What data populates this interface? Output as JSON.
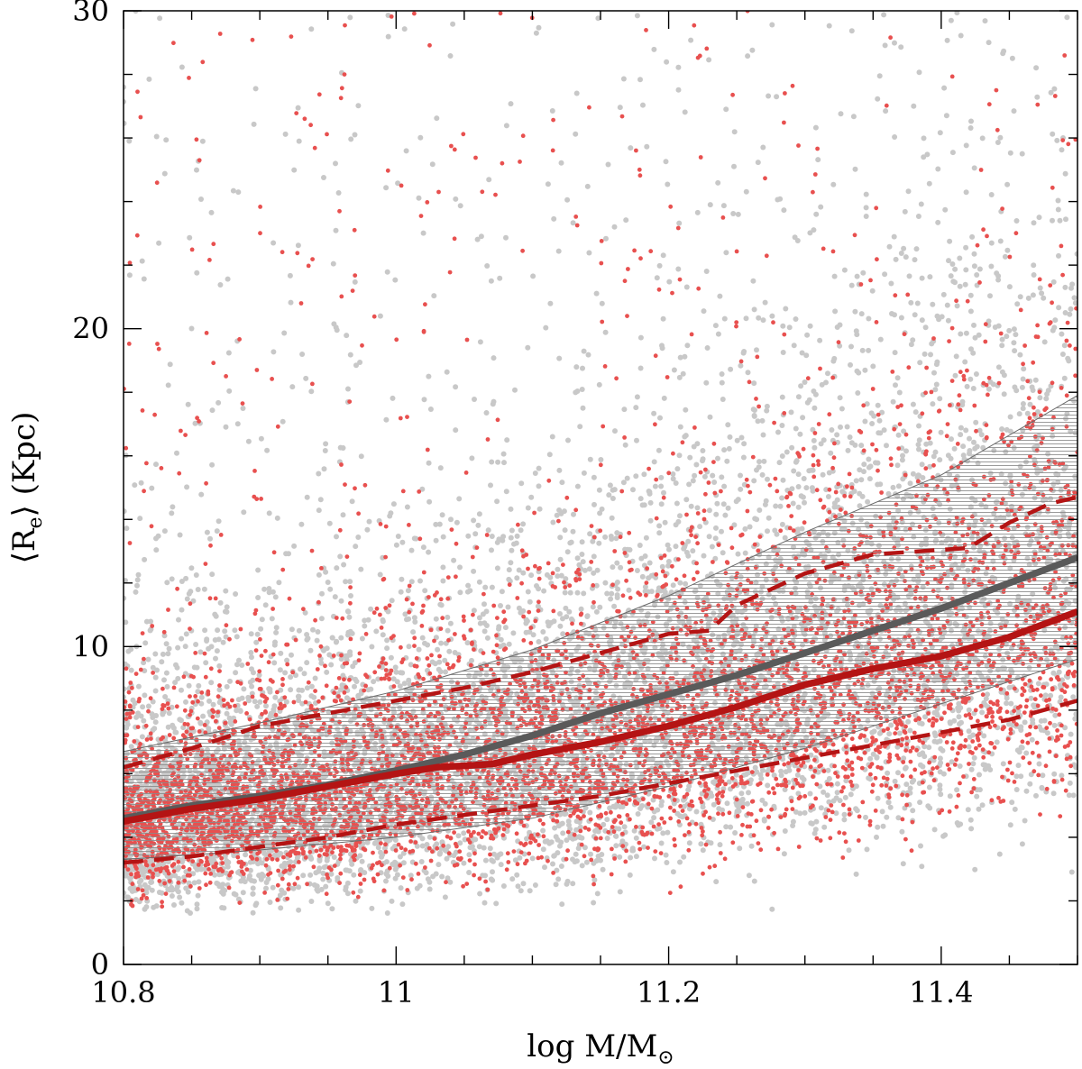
{
  "chart_data": {
    "type": "scatter",
    "title": "",
    "xlabel_main": "log M/M",
    "xlabel_sub": "⊙",
    "ylabel_main": "⟨R",
    "ylabel_sub": "e",
    "ylabel_tail": "⟩ (Kpc)",
    "xlim": [
      10.8,
      11.5
    ],
    "ylim": [
      0,
      30
    ],
    "x_ticks": [
      {
        "value": 10.8,
        "label": "10.8"
      },
      {
        "value": 11.0,
        "label": "11"
      },
      {
        "value": 11.2,
        "label": "11.2"
      },
      {
        "value": 11.4,
        "label": "11.4"
      }
    ],
    "y_ticks": [
      {
        "value": 0,
        "label": "0"
      },
      {
        "value": 10,
        "label": "10"
      },
      {
        "value": 20,
        "label": "20"
      },
      {
        "value": 30,
        "label": "30"
      }
    ],
    "x_minor_step": 0.05,
    "y_minor_step": 2,
    "grid": false,
    "legend": "none",
    "colors": {
      "gray_points": "#c8c8c8",
      "red_points": "#e8504f",
      "gray_median": "#5a5a5a",
      "red_median": "#b41414",
      "band_stripes": "#8a8a8a"
    },
    "series": [
      {
        "kind": "band",
        "x": [
          10.8,
          10.9,
          11.0,
          11.1,
          11.2,
          11.3,
          11.4,
          11.5
        ],
        "upper": [
          6.7,
          7.6,
          8.6,
          9.9,
          11.6,
          13.6,
          15.4,
          17.9
        ],
        "lower": [
          3.3,
          3.6,
          4.0,
          4.6,
          5.6,
          6.8,
          8.2,
          9.6
        ]
      },
      {
        "kind": "line",
        "style": "solid",
        "color": "gray_median",
        "x": [
          10.8,
          10.85,
          10.9,
          10.95,
          11.0,
          11.05,
          11.1,
          11.15,
          11.2,
          11.25,
          11.3,
          11.35,
          11.4,
          11.45,
          11.5
        ],
        "y": [
          4.6,
          5.0,
          5.3,
          5.65,
          6.1,
          6.6,
          7.2,
          7.9,
          8.5,
          9.1,
          9.8,
          10.5,
          11.2,
          12.0,
          12.8
        ]
      },
      {
        "kind": "line",
        "style": "solid",
        "color": "red_median",
        "x": [
          10.8,
          10.85,
          10.9,
          10.95,
          11.0,
          11.03,
          11.07,
          11.1,
          11.15,
          11.2,
          11.25,
          11.3,
          11.35,
          11.4,
          11.45,
          11.5
        ],
        "y": [
          4.5,
          4.9,
          5.2,
          5.6,
          6.0,
          6.2,
          6.3,
          6.6,
          7.0,
          7.5,
          8.1,
          8.8,
          9.3,
          9.7,
          10.3,
          11.1
        ]
      },
      {
        "kind": "line",
        "style": "dashed",
        "color": "red_median",
        "x": [
          10.8,
          10.85,
          10.9,
          10.95,
          11.0,
          11.05,
          11.1,
          11.15,
          11.2,
          11.23,
          11.25,
          11.3,
          11.35,
          11.42,
          11.45,
          11.48,
          11.5
        ],
        "y": [
          6.2,
          6.8,
          7.5,
          7.9,
          8.3,
          8.7,
          9.2,
          9.8,
          10.4,
          10.5,
          11.3,
          12.3,
          12.9,
          13.1,
          13.9,
          14.5,
          14.7
        ]
      },
      {
        "kind": "line",
        "style": "dashed",
        "color": "red_median",
        "x": [
          10.8,
          10.85,
          10.9,
          10.95,
          11.0,
          11.05,
          11.1,
          11.15,
          11.2,
          11.25,
          11.3,
          11.35,
          11.4,
          11.45,
          11.5
        ],
        "y": [
          3.2,
          3.4,
          3.7,
          4.0,
          4.4,
          4.7,
          5.0,
          5.3,
          5.7,
          6.1,
          6.5,
          6.9,
          7.3,
          7.7,
          8.3
        ]
      }
    ]
  }
}
